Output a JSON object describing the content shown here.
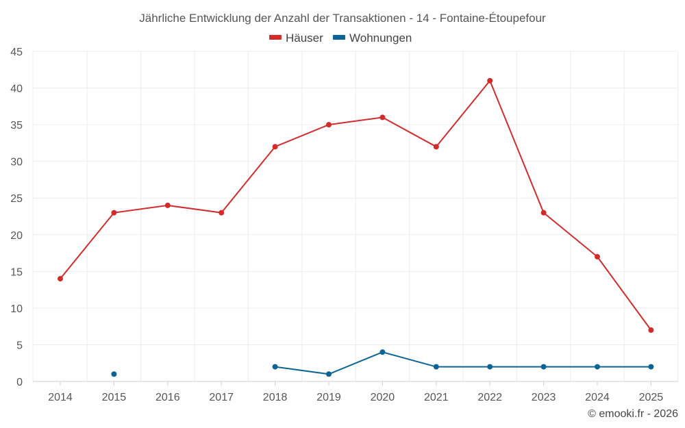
{
  "chart_data": {
    "type": "line",
    "title": "Jährliche Entwicklung der Anzahl der Transaktionen - 14 - Fontaine-Étoupefour",
    "categories": [
      "2014",
      "2015",
      "2016",
      "2017",
      "2018",
      "2019",
      "2020",
      "2021",
      "2022",
      "2023",
      "2024",
      "2025"
    ],
    "ylim": [
      0,
      45
    ],
    "yticks": [
      0,
      5,
      10,
      15,
      20,
      25,
      30,
      35,
      40,
      45
    ],
    "grid": true,
    "legend_position": "top-center",
    "series": [
      {
        "name": "Häuser",
        "color": "#d22b2b",
        "values": [
          14,
          23,
          24,
          23,
          32,
          35,
          36,
          32,
          41,
          23,
          17,
          7
        ]
      },
      {
        "name": "Wohnungen",
        "color": "#0a6496",
        "values": [
          null,
          1,
          null,
          null,
          2,
          1,
          4,
          2,
          2,
          2,
          2,
          2
        ]
      }
    ],
    "credit": "© emooki.fr - 2026"
  }
}
